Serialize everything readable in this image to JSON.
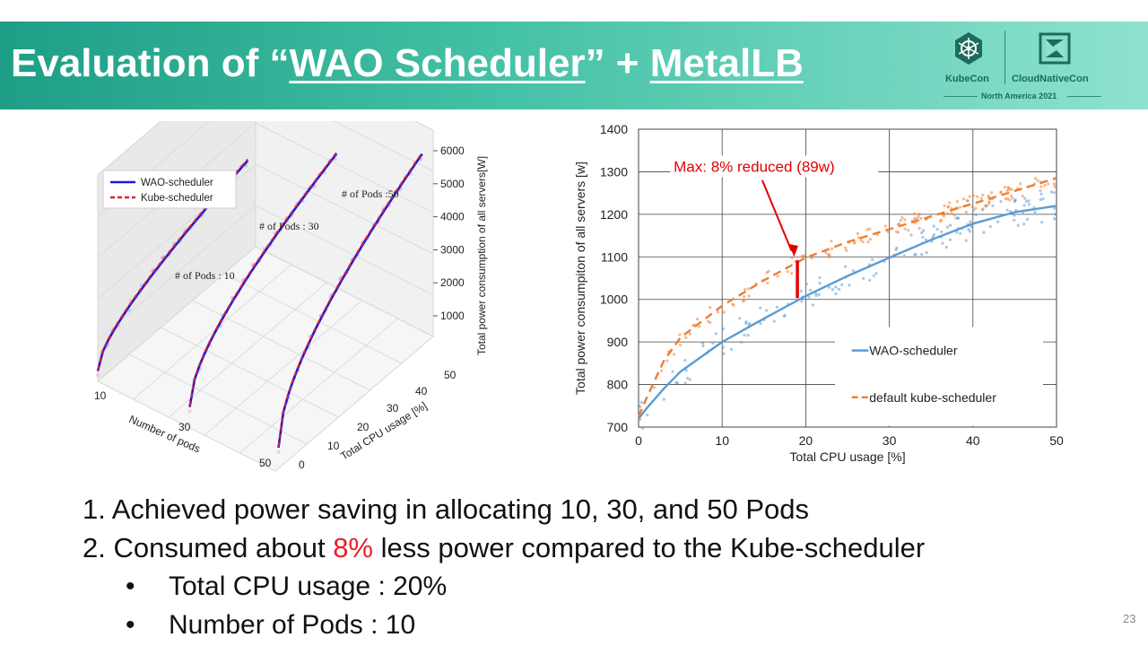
{
  "header": {
    "title_prefix": "Evaluation of “",
    "title_link": "WAO Scheduler",
    "title_middle": "” + ",
    "title_link2": "MetalLB"
  },
  "logo": {
    "kubecon": "KubeCon",
    "cloudnativecon": "CloudNativeCon",
    "event": "North America 2021",
    "colors": {
      "kube": "#1c6b5c"
    }
  },
  "bullets": {
    "item1": "1. Achieved power saving in allocating 10, 30, and 50 Pods",
    "item2_pre": "2. Consumed about ",
    "item2_highlight": "8%",
    "item2_post": " less power compared to the Kube-scheduler",
    "sub1": "Total CPU usage : 20%",
    "sub2": "Number of Pods : 10",
    "bullet_char": "•"
  },
  "page_number": "23",
  "chart_data": [
    {
      "type": "line",
      "subtype": "3d-line",
      "series": [
        {
          "name": "WAO-scheduler",
          "color": "#1a1adb",
          "style": "solid"
        },
        {
          "name": "Kube-scheduler",
          "color": "#e0202a",
          "style": "dashed"
        }
      ],
      "annotations": [
        "# of Pods : 10",
        "# of Pods : 30",
        "# of Pods :50"
      ],
      "x_axis": {
        "label": "Number of pods",
        "ticks": [
          "10",
          "30",
          "50"
        ]
      },
      "y_axis": {
        "label": "Total CPU usage [%]",
        "ticks": [
          "0",
          "10",
          "20",
          "30",
          "40",
          "50"
        ]
      },
      "z_axis": {
        "label": "Total power consumption of all servers[W]",
        "ticks": [
          "1000",
          "2000",
          "3000",
          "4000",
          "5000",
          "6000"
        ]
      },
      "legend": "top-left",
      "grid": true
    },
    {
      "type": "line",
      "xlabel": "Total CPU usage [%]",
      "ylabel": "Total power consumpiton of all servers [w]",
      "xlim": [
        0,
        50
      ],
      "ylim": [
        700,
        1400
      ],
      "xticks": [
        0,
        10,
        20,
        30,
        40,
        50
      ],
      "yticks": [
        700,
        800,
        900,
        1000,
        1100,
        1200,
        1300,
        1400
      ],
      "grid": true,
      "legend": "bottom-right",
      "annotation": {
        "text": "Max: 8% reduced (89w)",
        "x": 19,
        "y_from": 1003,
        "y_to": 1092,
        "color": "#e00000"
      },
      "series": [
        {
          "name": "WAO-scheduler",
          "color": "#5b9bd5",
          "style": "solid",
          "x": [
            0,
            1,
            3,
            5,
            10,
            15,
            20,
            25,
            30,
            35,
            40,
            45,
            50
          ],
          "y": [
            720,
            745,
            790,
            830,
            900,
            955,
            1008,
            1055,
            1098,
            1140,
            1178,
            1205,
            1220
          ]
        },
        {
          "name": "default kube-scheduler",
          "color": "#ed7d31",
          "style": "dashed",
          "x": [
            0,
            1,
            3,
            5,
            10,
            15,
            20,
            25,
            30,
            35,
            40,
            45,
            50
          ],
          "y": [
            725,
            770,
            855,
            910,
            985,
            1045,
            1098,
            1135,
            1165,
            1195,
            1225,
            1255,
            1285
          ]
        }
      ]
    }
  ]
}
